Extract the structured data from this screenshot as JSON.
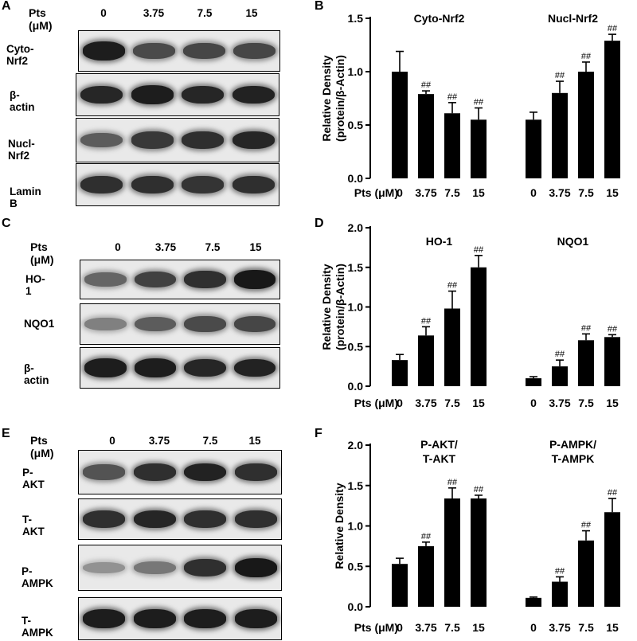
{
  "panels": {
    "A": {
      "letter": "A",
      "pts_label": "Pts (μM)",
      "concentrations": [
        "0",
        "3.75",
        "7.5",
        "15"
      ],
      "blots": [
        {
          "name": "Cyto-Nrf2",
          "intensity": [
            0.95,
            0.7,
            0.72,
            0.72
          ]
        },
        {
          "name": "β-actin",
          "intensity": [
            0.9,
            0.95,
            0.9,
            0.92
          ]
        },
        {
          "name": "Nucl-Nrf2",
          "intensity": [
            0.6,
            0.8,
            0.85,
            0.9
          ]
        },
        {
          "name": "Lamin B",
          "intensity": [
            0.85,
            0.85,
            0.82,
            0.85
          ]
        }
      ]
    },
    "C": {
      "letter": "C",
      "pts_label": "Pts (μM)",
      "concentrations": [
        "0",
        "3.75",
        "7.5",
        "15"
      ],
      "blots": [
        {
          "name": "HO-1",
          "intensity": [
            0.55,
            0.75,
            0.85,
            0.98
          ]
        },
        {
          "name": "NQO1",
          "intensity": [
            0.4,
            0.6,
            0.7,
            0.72
          ]
        },
        {
          "name": "β-actin",
          "intensity": [
            0.95,
            0.95,
            0.9,
            0.92
          ]
        }
      ]
    },
    "E": {
      "letter": "E",
      "pts_label": "Pts (μM)",
      "concentrations": [
        "0",
        "3.75",
        "7.5",
        "15"
      ],
      "blots": [
        {
          "name": "P-AKT",
          "intensity": [
            0.65,
            0.85,
            0.92,
            0.85
          ]
        },
        {
          "name": "T-AKT",
          "intensity": [
            0.85,
            0.9,
            0.85,
            0.85
          ]
        },
        {
          "name": "P-AMPK",
          "intensity": [
            0.3,
            0.45,
            0.85,
            0.98
          ]
        },
        {
          "name": "T-AMPK",
          "intensity": [
            0.95,
            0.95,
            0.95,
            0.95
          ]
        }
      ]
    }
  },
  "chart_data": [
    {
      "panel": "B",
      "type": "bar",
      "ylabel": "Relative Density\n(protein/β-Actin)",
      "ylim": [
        0,
        1.5
      ],
      "yticks": [
        "0.0",
        "0.5",
        "1.0",
        "1.5"
      ],
      "x_prefix": "Pts (μM)",
      "groups": [
        {
          "title": "Cyto-Nrf2",
          "categories": [
            "0",
            "3.75",
            "7.5",
            "15"
          ],
          "values": [
            1.0,
            0.79,
            0.61,
            0.55
          ],
          "errors": [
            0.19,
            0.03,
            0.1,
            0.11
          ],
          "marks": [
            "",
            "##",
            "##",
            "##"
          ]
        },
        {
          "title": "Nucl-Nrf2",
          "categories": [
            "0",
            "3.75",
            "7.5",
            "15"
          ],
          "values": [
            0.55,
            0.8,
            1.0,
            1.29
          ],
          "errors": [
            0.07,
            0.11,
            0.09,
            0.06
          ],
          "marks": [
            "",
            "##",
            "##",
            "##"
          ]
        }
      ]
    },
    {
      "panel": "D",
      "type": "bar",
      "ylabel": "Relative Density\n(protein/β-Actin)",
      "ylim": [
        0,
        2.0
      ],
      "yticks": [
        "0.0",
        "0.5",
        "1.0",
        "1.5",
        "2.0"
      ],
      "x_prefix": "Pts (μM)",
      "groups": [
        {
          "title": "HO-1",
          "categories": [
            "0",
            "3.75",
            "7.5",
            "15"
          ],
          "values": [
            0.33,
            0.64,
            0.98,
            1.5
          ],
          "errors": [
            0.07,
            0.11,
            0.22,
            0.15
          ],
          "marks": [
            "",
            "##",
            "##",
            "##"
          ]
        },
        {
          "title": "NQO1",
          "categories": [
            "0",
            "3.75",
            "7.5",
            "15"
          ],
          "values": [
            0.1,
            0.25,
            0.58,
            0.62
          ],
          "errors": [
            0.02,
            0.08,
            0.08,
            0.03
          ],
          "marks": [
            "",
            "##",
            "##",
            "##"
          ]
        }
      ]
    },
    {
      "panel": "F",
      "type": "bar",
      "ylabel": "Relative Density",
      "ylim": [
        0,
        2.0
      ],
      "yticks": [
        "0.0",
        "0.5",
        "1.0",
        "1.5",
        "2.0"
      ],
      "x_prefix": "Pts (μM)",
      "groups": [
        {
          "title": "P-AKT/\nT-AKT",
          "categories": [
            "0",
            "3.75",
            "7.5",
            "15"
          ],
          "values": [
            0.53,
            0.75,
            1.34,
            1.34
          ],
          "errors": [
            0.07,
            0.05,
            0.13,
            0.04
          ],
          "marks": [
            "",
            "##",
            "##",
            "##"
          ]
        },
        {
          "title": "P-AMPK/\nT-AMPK",
          "categories": [
            "0",
            "3.75",
            "7.5",
            "15"
          ],
          "values": [
            0.11,
            0.31,
            0.82,
            1.17
          ],
          "errors": [
            0.01,
            0.06,
            0.12,
            0.17
          ],
          "marks": [
            "",
            "##",
            "##",
            "##"
          ]
        }
      ]
    }
  ]
}
